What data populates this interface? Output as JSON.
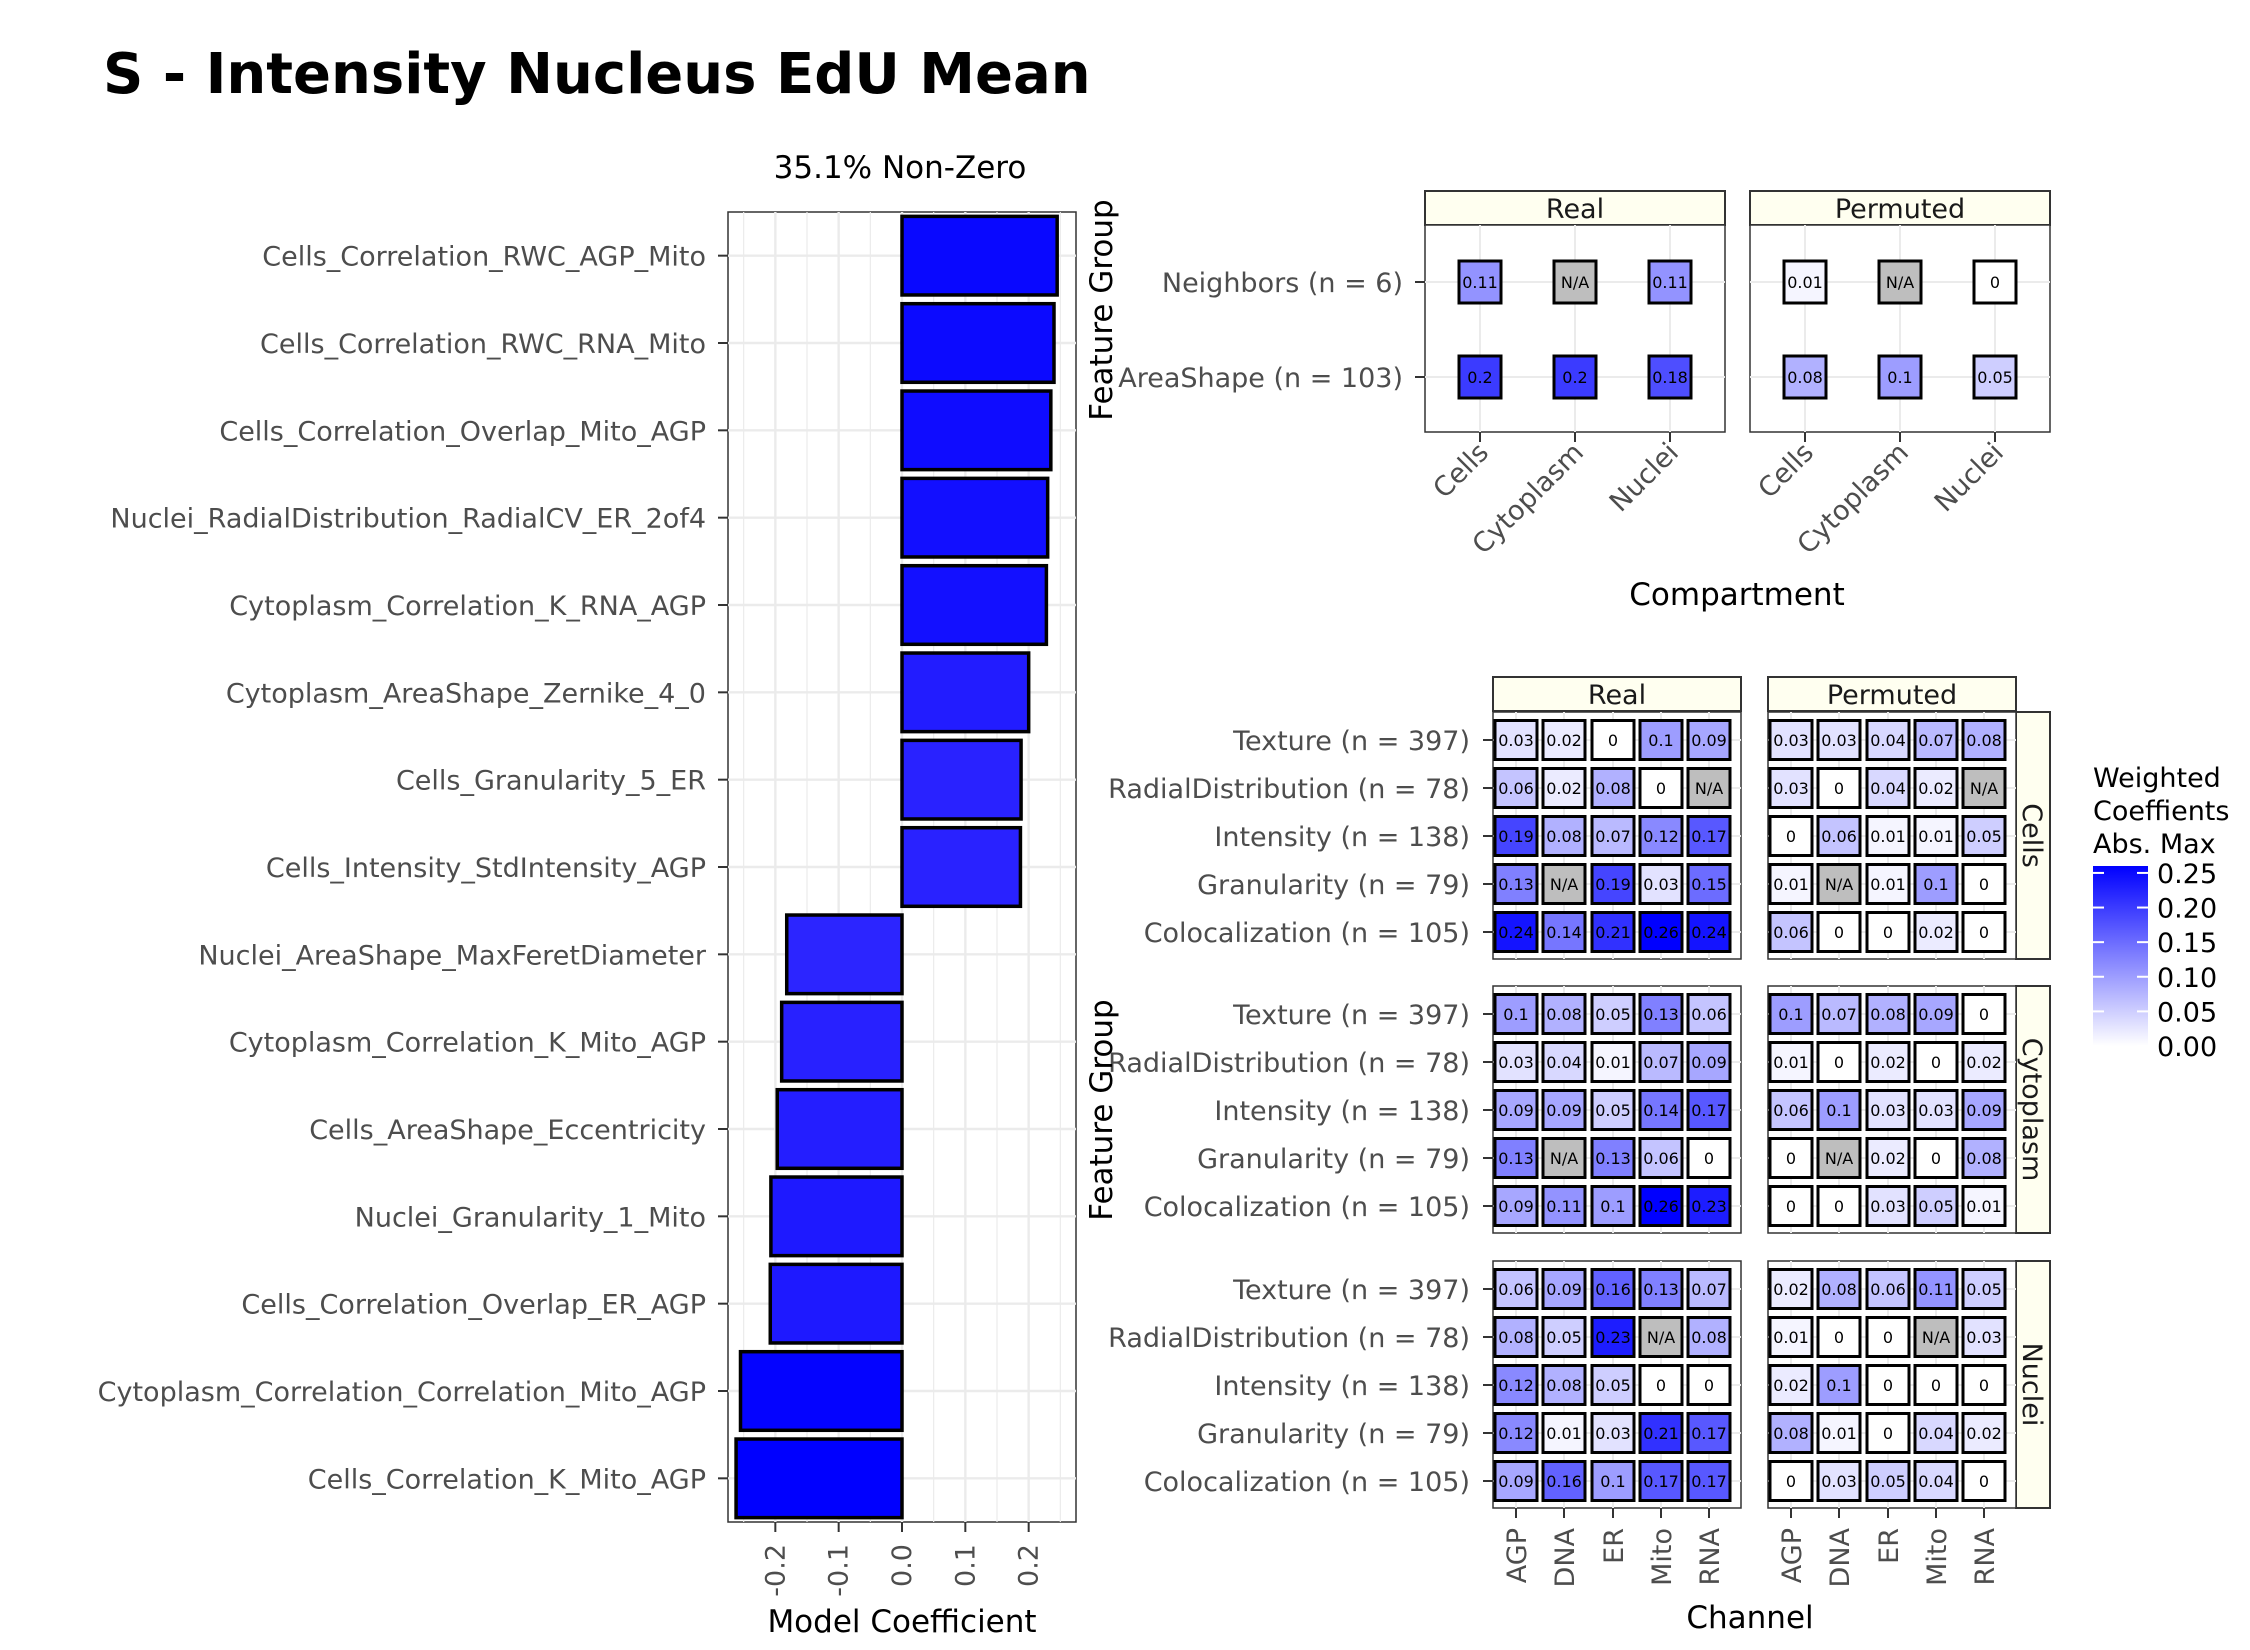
{
  "title": "S - Intensity Nucleus EdU Mean",
  "chart_data": [
    {
      "type": "bar",
      "orientation": "horizontal",
      "subtitle": "35.1% Non-Zero",
      "xlabel": "Model Coefficient",
      "xlim": [
        -0.27,
        0.27
      ],
      "xticks": [
        -0.2,
        -0.1,
        0.0,
        0.1,
        0.2
      ],
      "xtick_labels": [
        "-0.2",
        "-0.1",
        "0.0",
        "0.1",
        "0.2"
      ],
      "grid": true,
      "categories": [
        "Cells_Correlation_RWC_AGP_Mito",
        "Cells_Correlation_RWC_RNA_Mito",
        "Cells_Correlation_Overlap_Mito_AGP",
        "Nuclei_RadialDistribution_RadialCV_ER_2of4",
        "Cytoplasm_Correlation_K_RNA_AGP",
        "Cytoplasm_AreaShape_Zernike_4_0",
        "Cells_Granularity_5_ER",
        "Cells_Intensity_StdIntensity_AGP",
        "Nuclei_AreaShape_MaxFeretDiameter",
        "Cytoplasm_Correlation_K_Mito_AGP",
        "Cells_AreaShape_Eccentricity",
        "Nuclei_Granularity_1_Mito",
        "Cells_Correlation_Overlap_ER_AGP",
        "Cytoplasm_Correlation_Correlation_Mito_AGP",
        "Cells_Correlation_K_Mito_AGP"
      ],
      "values": [
        0.245,
        0.24,
        0.235,
        0.23,
        0.228,
        0.2,
        0.188,
        0.187,
        -0.182,
        -0.19,
        -0.197,
        -0.207,
        -0.208,
        -0.255,
        -0.262
      ]
    },
    {
      "type": "heatmap",
      "ylabel": "Feature Group",
      "xlabel": "Compartment",
      "panels": [
        "Real",
        "Permuted"
      ],
      "columns": [
        "Cells",
        "Cytoplasm",
        "Nuclei"
      ],
      "rows": [
        "Neighbors (n = 6)",
        "AreaShape (n = 103)"
      ],
      "values": {
        "Real": [
          [
            "0.11",
            "N/A",
            "0.11"
          ],
          [
            "0.2",
            "0.2",
            "0.18"
          ]
        ],
        "Permuted": [
          [
            "0.01",
            "N/A",
            "0"
          ],
          [
            "0.08",
            "0.1",
            "0.05"
          ]
        ]
      }
    },
    {
      "type": "heatmap",
      "ylabel": "Feature Group",
      "xlabel": "Channel",
      "col_panels": [
        "Real",
        "Permuted"
      ],
      "row_panels": [
        "Cells",
        "Cytoplasm",
        "Nuclei"
      ],
      "columns": [
        "AGP",
        "DNA",
        "ER",
        "Mito",
        "RNA"
      ],
      "rows": [
        "Texture (n = 397)",
        "RadialDistribution (n = 78)",
        "Intensity (n = 138)",
        "Granularity (n = 79)",
        "Colocalization (n = 105)"
      ],
      "values": {
        "Cells": {
          "Real": [
            [
              "0.03",
              "0.02",
              "0",
              "0.1",
              "0.09"
            ],
            [
              "0.06",
              "0.02",
              "0.08",
              "0",
              "N/A"
            ],
            [
              "0.19",
              "0.08",
              "0.07",
              "0.12",
              "0.17"
            ],
            [
              "0.13",
              "N/A",
              "0.19",
              "0.03",
              "0.15"
            ],
            [
              "0.24",
              "0.14",
              "0.21",
              "0.26",
              "0.24"
            ]
          ],
          "Permuted": [
            [
              "0.03",
              "0.03",
              "0.04",
              "0.07",
              "0.08"
            ],
            [
              "0.03",
              "0",
              "0.04",
              "0.02",
              "N/A"
            ],
            [
              "0",
              "0.06",
              "0.01",
              "0.01",
              "0.05"
            ],
            [
              "0.01",
              "N/A",
              "0.01",
              "0.1",
              "0"
            ],
            [
              "0.06",
              "0",
              "0",
              "0.02",
              "0"
            ]
          ]
        },
        "Cytoplasm": {
          "Real": [
            [
              "0.1",
              "0.08",
              "0.05",
              "0.13",
              "0.06"
            ],
            [
              "0.03",
              "0.04",
              "0.01",
              "0.07",
              "0.09"
            ],
            [
              "0.09",
              "0.09",
              "0.05",
              "0.14",
              "0.17"
            ],
            [
              "0.13",
              "N/A",
              "0.13",
              "0.06",
              "0"
            ],
            [
              "0.09",
              "0.11",
              "0.1",
              "0.26",
              "0.23"
            ]
          ],
          "Permuted": [
            [
              "0.1",
              "0.07",
              "0.08",
              "0.09",
              "0"
            ],
            [
              "0.01",
              "0",
              "0.02",
              "0",
              "0.02"
            ],
            [
              "0.06",
              "0.1",
              "0.03",
              "0.03",
              "0.09"
            ],
            [
              "0",
              "N/A",
              "0.02",
              "0",
              "0.08"
            ],
            [
              "0",
              "0",
              "0.03",
              "0.05",
              "0.01"
            ]
          ]
        },
        "Nuclei": {
          "Real": [
            [
              "0.06",
              "0.09",
              "0.16",
              "0.13",
              "0.07"
            ],
            [
              "0.08",
              "0.05",
              "0.23",
              "N/A",
              "0.08"
            ],
            [
              "0.12",
              "0.08",
              "0.05",
              "0",
              "0"
            ],
            [
              "0.12",
              "0.01",
              "0.03",
              "0.21",
              "0.17"
            ],
            [
              "0.09",
              "0.16",
              "0.1",
              "0.17",
              "0.17"
            ]
          ],
          "Permuted": [
            [
              "0.02",
              "0.08",
              "0.06",
              "0.11",
              "0.05"
            ],
            [
              "0.01",
              "0",
              "0",
              "N/A",
              "0.03"
            ],
            [
              "0.02",
              "0.1",
              "0",
              "0",
              "0"
            ],
            [
              "0.08",
              "0.01",
              "0",
              "0.04",
              "0.02"
            ],
            [
              "0",
              "0.03",
              "0.05",
              "0.04",
              "0"
            ]
          ]
        }
      }
    }
  ],
  "legend": {
    "title_lines": [
      "Weighted",
      "Coeffients",
      "Abs. Max"
    ],
    "ticks": [
      "0.25",
      "0.20",
      "0.15",
      "0.10",
      "0.05",
      "0.00"
    ],
    "tick_values": [
      0.25,
      0.2,
      0.15,
      0.1,
      0.05,
      0.0
    ],
    "max": 0.26
  },
  "colors": {
    "low": "#ffffff",
    "high": "#0000ff",
    "na": "#bebebe",
    "strip_fill": "#fffff0",
    "grid": "#ebebeb"
  }
}
